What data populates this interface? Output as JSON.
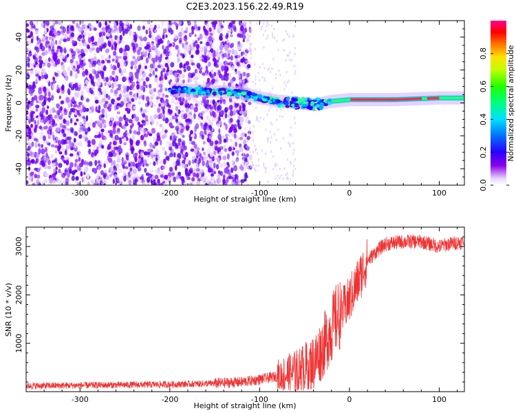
{
  "figure": {
    "title": "C2E3.2023.156.22.49.R19"
  },
  "chart_data": [
    {
      "type": "heatmap",
      "title": "C2E3.2023.156.22.49.R19",
      "xlabel": "Height of straight line (km)",
      "ylabel": "Frequency (Hz)",
      "xlim": [
        -360,
        128
      ],
      "ylim": [
        -50,
        50
      ],
      "x_ticks": [
        -300,
        -200,
        -100,
        0,
        100
      ],
      "x_tick_labels": [
        "-300",
        "-200",
        "-100",
        "0",
        "100"
      ],
      "y_ticks": [
        -40,
        -20,
        0,
        20,
        40
      ],
      "y_tick_labels": [
        "-40",
        "-20",
        "0",
        "20",
        "40"
      ],
      "colorbar": {
        "label": "Normalized spectral amplitude",
        "range": [
          0,
          1
        ],
        "ticks": [
          0.0,
          0.2,
          0.4,
          0.6,
          0.8
        ],
        "tick_labels": [
          "0.0",
          "0.2",
          "0.4",
          "0.6",
          "0.8"
        ],
        "colormap": "rainbow (white-violet-blue-cyan-green-yellow-orange-red-magenta)"
      },
      "description_of_signal": {
        "noise_region_x": [
          -360,
          -120
        ],
        "signal_band_x": [
          -200,
          128
        ],
        "signal_frequency_hz_at_x": [
          [
            -200,
            8
          ],
          [
            -150,
            7
          ],
          [
            -120,
            6
          ],
          [
            -100,
            3
          ],
          [
            -80,
            1
          ],
          [
            -60,
            0
          ],
          [
            -40,
            -1
          ],
          [
            -20,
            1
          ],
          [
            0,
            2
          ],
          [
            50,
            2
          ],
          [
            100,
            3
          ],
          [
            128,
            3
          ]
        ],
        "peak_amplitude_at_x_range": [
          -20,
          128
        ]
      }
    },
    {
      "type": "line",
      "xlabel": "Height of straight line (km)",
      "ylabel": "SNR (10 * v/v)",
      "xlim": [
        -360,
        128
      ],
      "ylim": [
        0,
        3400
      ],
      "x_ticks": [
        -300,
        -200,
        -100,
        0,
        100
      ],
      "x_tick_labels": [
        "-300",
        "-200",
        "-100",
        "0",
        "100"
      ],
      "y_ticks": [
        1000,
        2000,
        3000
      ],
      "y_tick_labels": [
        "1000",
        "2000",
        "3000"
      ],
      "color": "#ee3333",
      "series": [
        {
          "x": [
            -360,
            -300,
            -250,
            -200,
            -150,
            -120,
            -100,
            -80,
            -60,
            -40,
            -30,
            -20,
            -15,
            -10,
            0,
            10,
            20,
            30,
            40,
            60,
            80,
            100,
            110,
            128
          ],
          "y": [
            120,
            130,
            140,
            150,
            170,
            200,
            250,
            320,
            400,
            600,
            900,
            1300,
            1500,
            1600,
            1900,
            2300,
            2700,
            2900,
            3050,
            3100,
            3100,
            3000,
            3050,
            3100
          ]
        }
      ]
    }
  ]
}
